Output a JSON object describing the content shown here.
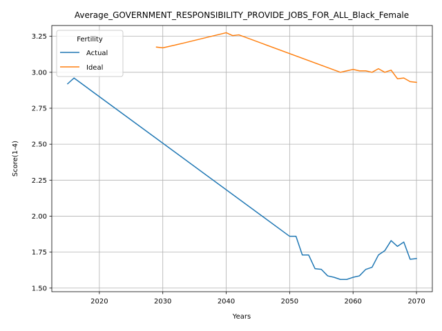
{
  "chart_data": {
    "type": "line",
    "title": "Average_GOVERNMENT_RESPONSIBILITY_PROVIDE_JOBS_FOR_ALL_Black_Female",
    "xlabel": "Years",
    "ylabel": "Score(1-4)",
    "xlim": [
      2012.5,
      2072.5
    ],
    "ylim": [
      1.475,
      3.325
    ],
    "xticks": [
      2020,
      2030,
      2040,
      2050,
      2060,
      2070
    ],
    "yticks": [
      1.5,
      1.75,
      2.0,
      2.25,
      2.5,
      2.75,
      3.0,
      3.25
    ],
    "xtick_labels": [
      "2020",
      "2030",
      "2040",
      "2050",
      "2060",
      "2070"
    ],
    "ytick_labels": [
      "1.50",
      "1.75",
      "2.00",
      "2.25",
      "2.50",
      "2.75",
      "3.00",
      "3.25"
    ],
    "grid": true,
    "legend": {
      "title": "Fertility",
      "placement": "top-left"
    },
    "series": [
      {
        "name": "Actual",
        "color": "#1f77b4",
        "x": [
          2015,
          2016,
          2050,
          2051,
          2052,
          2053,
          2054,
          2055,
          2056,
          2057,
          2058,
          2059,
          2060,
          2061,
          2062,
          2063,
          2064,
          2065,
          2066,
          2067,
          2068,
          2069,
          2070
        ],
        "y": [
          2.92,
          2.96,
          1.86,
          1.86,
          1.73,
          1.73,
          1.635,
          1.63,
          1.585,
          1.575,
          1.56,
          1.56,
          1.575,
          1.585,
          1.63,
          1.645,
          1.73,
          1.76,
          1.83,
          1.79,
          1.82,
          1.7,
          1.705
        ]
      },
      {
        "name": "Ideal",
        "color": "#ff7f0e",
        "x": [
          2029,
          2030,
          2033,
          2040,
          2041,
          2042,
          2058,
          2059,
          2060,
          2061,
          2062,
          2063,
          2064,
          2065,
          2066,
          2067,
          2068,
          2069,
          2070
        ],
        "y": [
          3.175,
          3.17,
          3.2,
          3.275,
          3.255,
          3.26,
          3.0,
          3.01,
          3.02,
          3.01,
          3.01,
          3.0,
          3.025,
          3.0,
          3.015,
          2.955,
          2.96,
          2.935,
          2.93
        ]
      }
    ]
  }
}
